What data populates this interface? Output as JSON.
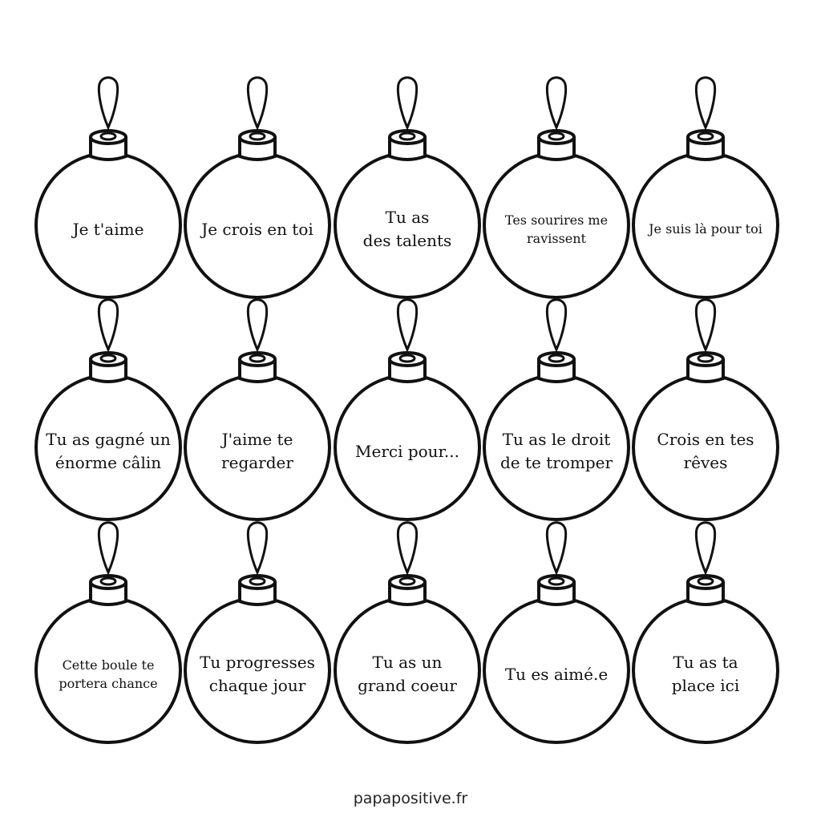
{
  "ornaments": [
    {
      "lines": [
        "Je t'aime"
      ],
      "size": 20
    },
    {
      "lines": [
        "Je crois en toi"
      ],
      "size": 20
    },
    {
      "lines": [
        "Tu as",
        "des talents"
      ],
      "size": 20
    },
    {
      "lines": [
        "Tes sourires me",
        "ravissent"
      ],
      "size": 16
    },
    {
      "lines": [
        "Je suis là pour toi"
      ],
      "size": 16
    },
    {
      "lines": [
        "Tu as gagné un",
        "énorme câlin"
      ],
      "size": 20
    },
    {
      "lines": [
        "J'aime te",
        "regarder"
      ],
      "size": 20
    },
    {
      "lines": [
        "Merci pour..."
      ],
      "size": 20
    },
    {
      "lines": [
        "Tu as le droit",
        "de te tromper"
      ],
      "size": 20
    },
    {
      "lines": [
        "Crois en tes",
        "rêves"
      ],
      "size": 20
    },
    {
      "lines": [
        "Cette boule te",
        "portera chance"
      ],
      "size": 16
    },
    {
      "lines": [
        "Tu progresses",
        "chaque jour"
      ],
      "size": 20
    },
    {
      "lines": [
        "Tu as un",
        "grand coeur"
      ],
      "size": 20
    },
    {
      "lines": [
        "Tu es aimé.e"
      ],
      "size": 20
    },
    {
      "lines": [
        "Tu as ta",
        "place ici"
      ],
      "size": 20
    }
  ],
  "footer": "papapositive.fr"
}
